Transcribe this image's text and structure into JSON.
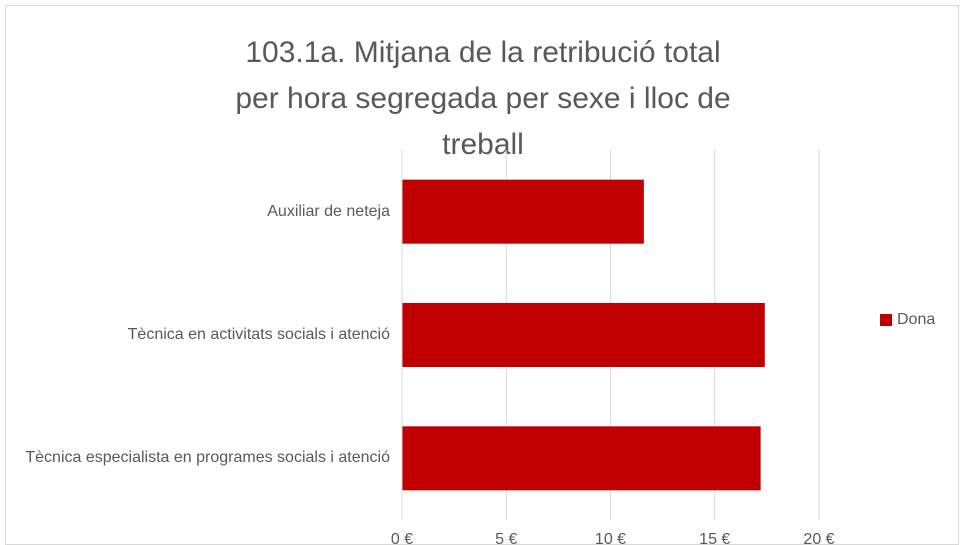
{
  "chart_data": {
    "type": "hbar",
    "title": "103.1a. Mitjana de la retribució total per hora segregada per sexe i lloc de treball",
    "categories": [
      "Auxiliar de neteja",
      "Tècnica en activitats socials i atenció",
      "Tècnica especialista en programes socials i atenció"
    ],
    "series": [
      {
        "name": "Dona",
        "color": "#c00000",
        "values": [
          11.6,
          17.4,
          17.2
        ]
      }
    ],
    "xlim": [
      0,
      20
    ],
    "xticks": [
      {
        "value": 0,
        "label": "0 €"
      },
      {
        "value": 5,
        "label": "5 €"
      },
      {
        "value": 10,
        "label": "10 €"
      },
      {
        "value": 15,
        "label": "15 €"
      },
      {
        "value": 20,
        "label": "20 €"
      }
    ],
    "grid": true,
    "legend": "right"
  }
}
